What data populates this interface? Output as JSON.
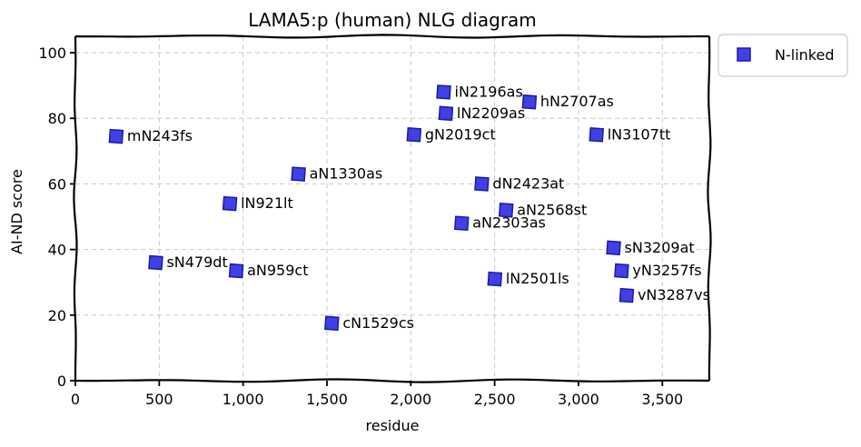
{
  "chart_data": {
    "type": "scatter",
    "title": "LAMA5:p (human) NLG diagram",
    "xlabel": "residue",
    "ylabel": "AI-ND score",
    "xlim": [
      0,
      3780
    ],
    "ylim": [
      0,
      105
    ],
    "xticks": [
      0,
      500,
      1000,
      1500,
      2000,
      2500,
      3000,
      3500
    ],
    "xtick_labels": [
      "0",
      "500",
      "1,000",
      "1,500",
      "2,000",
      "2,500",
      "3,000",
      "3,500"
    ],
    "yticks": [
      0,
      20,
      40,
      60,
      80,
      100
    ],
    "ytick_labels": [
      "0",
      "20",
      "40",
      "60",
      "80",
      "100"
    ],
    "grid": true,
    "legend_position": "outside-top-right",
    "series": [
      {
        "name": "N-linked",
        "color": "#1f1fe0",
        "marker": "square",
        "points": [
          {
            "x": 243,
            "y": 74.5,
            "label": "mN243fs"
          },
          {
            "x": 479,
            "y": 36,
            "label": "sN479dt"
          },
          {
            "x": 921,
            "y": 54,
            "label": "lN921lt"
          },
          {
            "x": 959,
            "y": 33.5,
            "label": "aN959ct"
          },
          {
            "x": 1330,
            "y": 63,
            "label": "aN1330as"
          },
          {
            "x": 1529,
            "y": 17.5,
            "label": "cN1529cs"
          },
          {
            "x": 2019,
            "y": 75,
            "label": "gN2019ct"
          },
          {
            "x": 2196,
            "y": 88,
            "label": "iN2196as"
          },
          {
            "x": 2209,
            "y": 81.5,
            "label": "lN2209as"
          },
          {
            "x": 2303,
            "y": 48,
            "label": "aN2303as"
          },
          {
            "x": 2423,
            "y": 60,
            "label": "dN2423at"
          },
          {
            "x": 2501,
            "y": 31,
            "label": "lN2501ls"
          },
          {
            "x": 2568,
            "y": 52,
            "label": "aN2568st"
          },
          {
            "x": 2707,
            "y": 85,
            "label": "hN2707as"
          },
          {
            "x": 3107,
            "y": 75,
            "label": "lN3107tt"
          },
          {
            "x": 3209,
            "y": 40.5,
            "label": "sN3209at"
          },
          {
            "x": 3257,
            "y": 33.5,
            "label": "yN3257fs"
          },
          {
            "x": 3287,
            "y": 26,
            "label": "vN3287vs"
          }
        ]
      }
    ]
  }
}
